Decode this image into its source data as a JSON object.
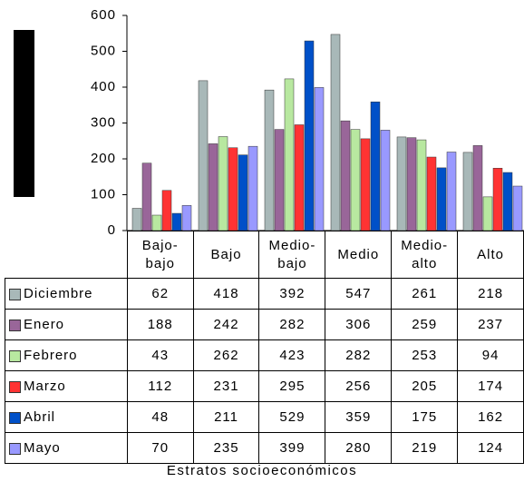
{
  "chart_data": {
    "type": "bar",
    "x_label": "Estratos socioeconómicos",
    "categories": [
      "Bajo-bajo",
      "Bajo",
      "Medio-bajo",
      "Medio",
      "Medio-alto",
      "Alto"
    ],
    "series": [
      {
        "name": "Diciembre",
        "color": "#a8b8b8",
        "values": [
          62,
          418,
          392,
          547,
          261,
          218
        ]
      },
      {
        "name": "Enero",
        "color": "#996699",
        "values": [
          188,
          242,
          282,
          306,
          259,
          237
        ]
      },
      {
        "name": "Febrero",
        "color": "#b8e8a0",
        "values": [
          43,
          262,
          423,
          282,
          253,
          94
        ]
      },
      {
        "name": "Marzo",
        "color": "#ff3333",
        "values": [
          112,
          231,
          295,
          256,
          205,
          174
        ]
      },
      {
        "name": "Abril",
        "color": "#0050c8",
        "values": [
          48,
          211,
          529,
          359,
          175,
          162
        ]
      },
      {
        "name": "Mayo",
        "color": "#9999ff",
        "values": [
          70,
          235,
          399,
          280,
          219,
          124
        ]
      }
    ],
    "ylim": [
      0,
      600
    ],
    "yticks": [
      0,
      100,
      200,
      300,
      400,
      500,
      600
    ]
  }
}
